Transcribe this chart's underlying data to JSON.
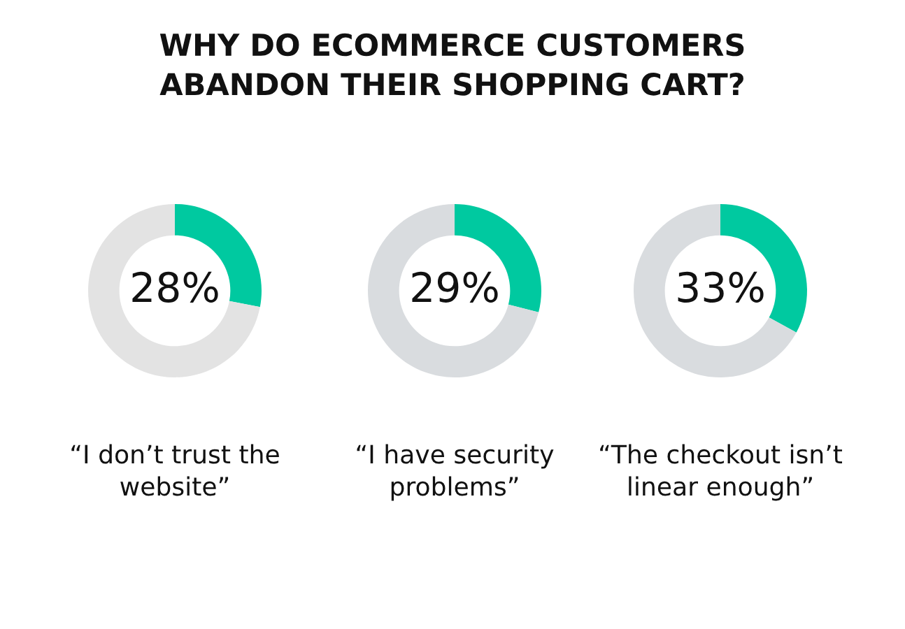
{
  "chart_data": [
    {
      "type": "other",
      "title": "WHY DO ECOMMERCE CUSTOMERS\nABANDON THEIR SHOPPING CART?"
    },
    {
      "type": "donut",
      "title": "“I don’t trust the\nwebsite”",
      "categories": [
        null,
        null
      ],
      "values": [
        28,
        72
      ],
      "colors": [
        "#00c9a0",
        "#e3e3e3"
      ],
      "value_labels": [
        "28%",
        null
      ]
    },
    {
      "type": "donut",
      "title": "“I have security\nproblems”",
      "categories": [
        null,
        null
      ],
      "values": [
        29,
        71
      ],
      "colors": [
        "#00c9a0",
        "#d9dcdf"
      ],
      "value_labels": [
        "29%",
        null
      ]
    },
    {
      "type": "donut",
      "title": "“The checkout isn’t\nlinear enough”",
      "categories": [
        null,
        null
      ],
      "values": [
        33,
        67
      ],
      "colors": [
        "#00c9a0",
        "#d9dcdf"
      ],
      "value_labels": [
        "33%",
        null
      ]
    }
  ]
}
